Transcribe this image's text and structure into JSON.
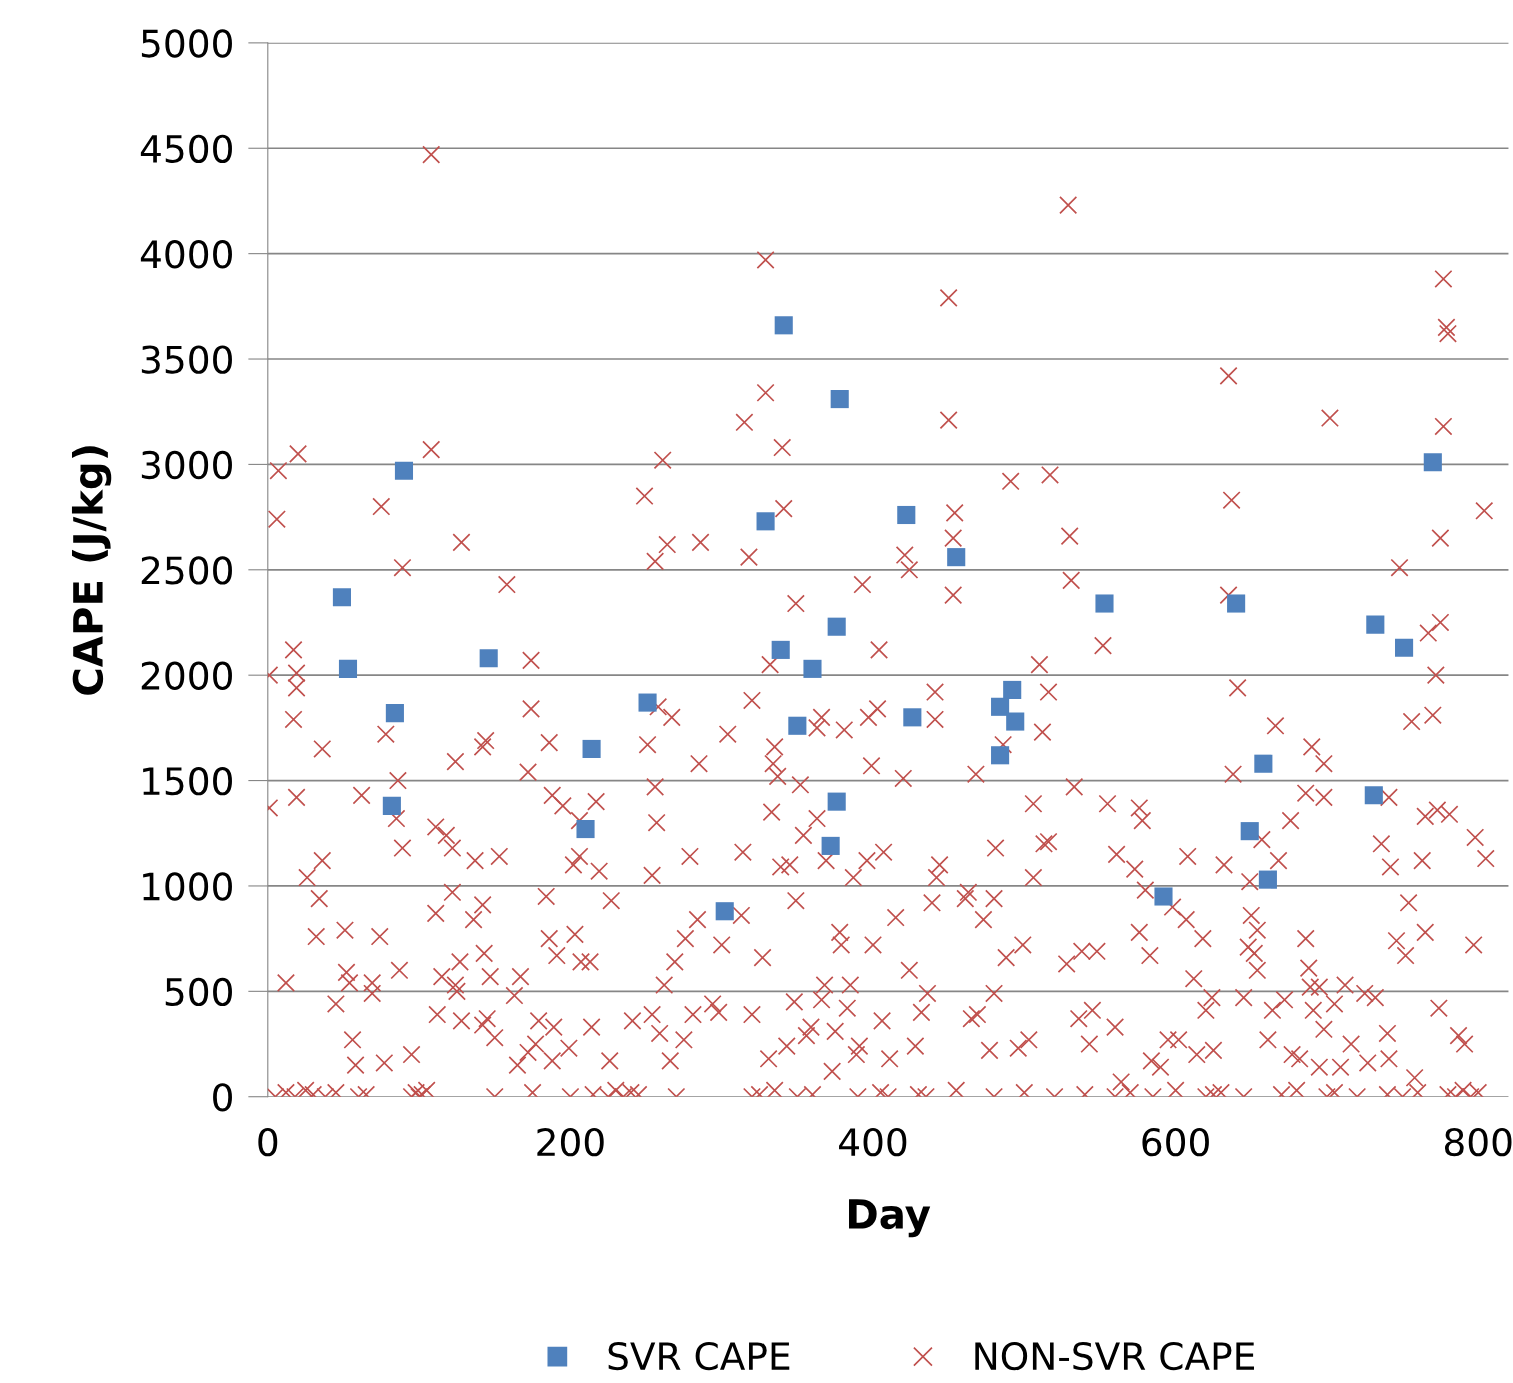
{
  "chart_data": {
    "type": "scatter",
    "xlabel": "Day",
    "ylabel": "CAPE (J/kg)",
    "xlim": [
      0,
      820
    ],
    "xticks": [
      0,
      200,
      400,
      600,
      800
    ],
    "ylim": [
      0,
      5000
    ],
    "yticks": [
      0,
      500,
      1000,
      1500,
      2000,
      2500,
      3000,
      3500,
      4000,
      4500,
      5000
    ],
    "grid": "y",
    "legend": "bottom",
    "series": [
      {
        "name": "SVR CAPE",
        "color": "#4f81bd",
        "marker": "square",
        "x": [
          49,
          53,
          84,
          82,
          90,
          146,
          214,
          210,
          251,
          302,
          329,
          341,
          339,
          350,
          360,
          378,
          376,
          376,
          372,
          422,
          426,
          455,
          484,
          484,
          492,
          494,
          553,
          592,
          640,
          658,
          649,
          661,
          732,
          731,
          751,
          770
        ],
        "values": [
          2370,
          2030,
          1820,
          1380,
          2970,
          2080,
          1650,
          1270,
          1870,
          880,
          2730,
          3660,
          2120,
          1760,
          2030,
          3310,
          2230,
          1400,
          1190,
          2760,
          1800,
          2560,
          1850,
          1620,
          1930,
          1780,
          2340,
          950,
          2340,
          1580,
          1260,
          1030,
          2240,
          1430,
          2130,
          3010
        ]
      },
      {
        "name": "NON-SVR CAPE",
        "color": "#c0504d",
        "marker": "cross",
        "x": [
          1,
          1,
          6,
          7,
          17,
          17,
          19,
          19,
          20,
          19,
          12,
          26,
          34,
          32,
          36,
          36,
          45,
          51,
          52,
          54,
          56,
          62,
          58,
          69,
          69,
          74,
          75,
          78,
          77,
          86,
          85,
          87,
          89,
          89,
          95,
          108,
          108,
          111,
          111,
          118,
          122,
          122,
          115,
          112,
          124,
          128,
          127,
          125,
          124,
          128,
          136,
          137,
          142,
          144,
          142,
          142,
          145,
          143,
          147,
          153,
          158,
          150,
          163,
          165,
          167,
          172,
          174,
          174,
          172,
          177,
          179,
          184,
          188,
          186,
          188,
          191,
          186,
          189,
          195,
          199,
          202,
          203,
          206,
          206,
          207,
          213,
          217,
          214,
          219,
          226,
          227,
          241,
          249,
          251,
          254,
          256,
          254,
          256,
          257,
          258,
          261,
          264,
          267,
          259,
          262,
          266,
          269,
          275,
          276,
          279,
          281,
          285,
          286,
          284,
          294,
          298,
          300,
          304,
          313,
          314,
          315,
          318,
          320,
          320,
          327,
          329,
          329,
          331,
          332,
          333,
          334,
          335,
          337,
          339,
          340,
          341,
          343,
          345,
          349,
          349,
          348,
          352,
          354,
          356,
          359,
          363,
          363,
          366,
          368,
          366,
          369,
          373,
          375,
          378,
          379,
          381,
          383,
          385,
          387,
          389,
          391,
          393,
          396,
          399,
          400,
          397,
          404,
          403,
          407,
          406,
          411,
          415,
          420,
          421,
          424,
          424,
          428,
          432,
          436,
          439,
          441,
          441,
          442,
          444,
          450,
          450,
          453,
          453,
          454,
          461,
          463,
          465,
          469,
          468,
          473,
          477,
          480,
          481,
          480,
          486,
          488,
          491,
          496,
          499,
          503,
          506,
          506,
          510,
          512,
          513,
          516,
          517,
          516,
          528,
          529,
          530,
          531,
          533,
          536,
          538,
          543,
          545,
          548,
          552,
          555,
          560,
          561,
          564,
          573,
          576,
          578,
          576,
          580,
          583,
          584,
          590,
          595,
          598,
          602,
          607,
          608,
          614,
          612,
          618,
          620,
          625,
          624,
          632,
          635,
          635,
          637,
          638,
          641,
          645,
          648,
          649,
          650,
          652,
          654,
          654,
          657,
          664,
          661,
          666,
          668,
          672,
          676,
          677,
          682,
          686,
          686,
          688,
          689,
          690,
          691,
          695,
          698,
          698,
          695,
          698,
          702,
          705,
          709,
          712,
          716,
          725,
          727,
          732,
          736,
          740,
          741,
          741,
          742,
          746,
          748,
          752,
          754,
          756,
          758,
          763,
          765,
          765,
          767,
          770,
          772,
          774,
          775,
          775,
          777,
          777,
          779,
          780,
          773,
          781,
          787,
          791,
          797,
          798,
          804,
          805,
          5,
          12,
          18,
          25,
          30,
          38,
          45,
          60,
          65,
          95,
          98,
          100,
          102,
          105,
          150,
          175,
          200,
          215,
          225,
          230,
          235,
          240,
          245,
          270,
          320,
          325,
          335,
          350,
          360,
          390,
          405,
          410,
          430,
          435,
          455,
          480,
          500,
          520,
          540,
          560,
          570,
          585,
          600,
          620,
          625,
          630,
          645,
          670,
          680,
          700,
          705,
          720,
          740,
          750,
          760,
          780,
          785,
          790,
          795,
          800
        ],
        "values": [
          1370,
          2000,
          2740,
          2970,
          1790,
          2120,
          1940,
          2010,
          3050,
          1420,
          540,
          1040,
          940,
          760,
          1120,
          1650,
          440,
          790,
          590,
          540,
          270,
          1430,
          150,
          490,
          540,
          760,
          2800,
          1720,
          160,
          1500,
          1320,
          600,
          1180,
          2510,
          200,
          4470,
          3070,
          870,
          1280,
          1240,
          1180,
          970,
          570,
          390,
          1590,
          2630,
          640,
          500,
          530,
          360,
          840,
          1120,
          1660,
          1690,
          910,
          340,
          370,
          680,
          570,
          1140,
          2430,
          280,
          480,
          150,
          570,
          210,
          2070,
          1840,
          1540,
          250,
          360,
          950,
          170,
          1680,
          1430,
          670,
          750,
          330,
          1380,
          230,
          1100,
          770,
          1310,
          1140,
          640,
          640,
          1400,
          330,
          1070,
          170,
          930,
          360,
          2850,
          1670,
          390,
          1470,
          1050,
          2540,
          1300,
          1850,
          3020,
          2620,
          1800,
          300,
          530,
          170,
          640,
          270,
          750,
          1140,
          390,
          1580,
          2630,
          840,
          440,
          400,
          720,
          1720,
          860,
          1160,
          3200,
          2560,
          1880,
          390,
          660,
          3340,
          3970,
          180,
          2050,
          1350,
          1580,
          1660,
          1520,
          1090,
          3080,
          2790,
          240,
          1100,
          2340,
          930,
          450,
          1480,
          1240,
          290,
          330,
          1320,
          1750,
          1800,
          530,
          460,
          1120,
          120,
          310,
          780,
          720,
          1740,
          420,
          530,
          1040,
          200,
          240,
          2430,
          1120,
          1570,
          720,
          1800,
          2120,
          1840,
          1160,
          360,
          180,
          850,
          1510,
          2570,
          2500,
          600,
          240,
          400,
          490,
          920,
          1790,
          1920,
          1040,
          1100,
          3210,
          3790,
          2380,
          2650,
          2770,
          940,
          970,
          370,
          390,
          1530,
          840,
          220,
          490,
          1180,
          940,
          1670,
          660,
          2920,
          230,
          720,
          270,
          1390,
          1040,
          2050,
          1730,
          1200,
          1920,
          2950,
          1210,
          630,
          4230,
          2660,
          2450,
          1470,
          370,
          690,
          250,
          410,
          690,
          2140,
          1390,
          330,
          1150,
          70,
          1080,
          1370,
          1310,
          780,
          980,
          670,
          170,
          140,
          270,
          900,
          270,
          840,
          1140,
          200,
          560,
          750,
          410,
          220,
          470,
          1100,
          3420,
          2380,
          2830,
          1530,
          1940,
          470,
          710,
          1020,
          860,
          680,
          600,
          790,
          1220,
          410,
          270,
          1760,
          1120,
          460,
          1310,
          200,
          180,
          750,
          1440,
          610,
          520,
          1660,
          410,
          140,
          1580,
          1420,
          520,
          320,
          3220,
          440,
          140,
          530,
          250,
          490,
          160,
          470,
          1200,
          300,
          1420,
          180,
          1090,
          740,
          2510,
          670,
          920,
          1780,
          90,
          1120,
          780,
          1330,
          2200,
          1810,
          2000,
          420,
          2650,
          2250,
          3180,
          3880,
          3650,
          3620,
          1360,
          1340,
          290,
          250,
          720,
          1230,
          2780,
          1130,
          0,
          20,
          0,
          30,
          10,
          0,
          20,
          0,
          10,
          0,
          20,
          0,
          10,
          30,
          0,
          20,
          0,
          10,
          0,
          30,
          0,
          20,
          10,
          0,
          0,
          10,
          30,
          0,
          10,
          0,
          20,
          0,
          10,
          0,
          30,
          0,
          20,
          0,
          10,
          0,
          20,
          0,
          30,
          0,
          10,
          20,
          0,
          10,
          30,
          0,
          20,
          0,
          10,
          0,
          20,
          10,
          0,
          30,
          0,
          20
        ]
      }
    ]
  }
}
